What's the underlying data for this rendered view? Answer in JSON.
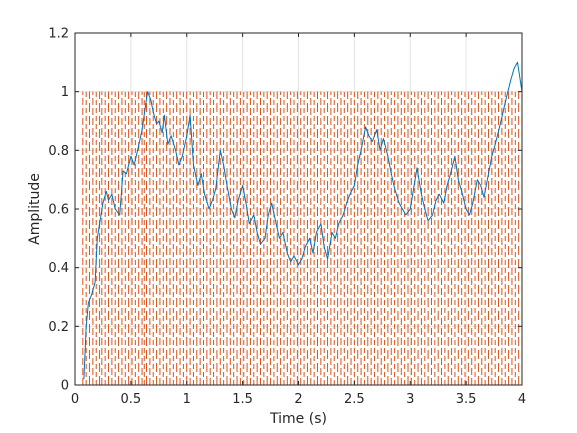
{
  "chart_data": {
    "type": "line",
    "title": "",
    "xlabel": "Time (s)",
    "ylabel": "Amplitude",
    "xlim": [
      0,
      4
    ],
    "ylim": [
      0,
      1.2
    ],
    "grid": true,
    "x_ticks": [
      0,
      0.5,
      1,
      1.5,
      2,
      2.5,
      3,
      3.5,
      4
    ],
    "x_tick_labels": [
      "0",
      "0.5",
      "1",
      "1.5",
      "2",
      "2.5",
      "3",
      "3.5",
      "4"
    ],
    "y_ticks": [
      0,
      0.2,
      0.4,
      0.6,
      0.8,
      1,
      1.2
    ],
    "y_tick_labels": [
      "0",
      "0.2",
      "0.4",
      "0.6",
      "0.8",
      "1",
      "1.2"
    ],
    "series": [
      {
        "kind": "line",
        "color": "#0072BD",
        "x": [
          0.08,
          0.1,
          0.12,
          0.15,
          0.18,
          0.2,
          0.22,
          0.25,
          0.28,
          0.3,
          0.33,
          0.36,
          0.4,
          0.43,
          0.46,
          0.5,
          0.53,
          0.56,
          0.6,
          0.63,
          0.65,
          0.68,
          0.7,
          0.73,
          0.75,
          0.78,
          0.8,
          0.83,
          0.86,
          0.9,
          0.93,
          0.96,
          1.0,
          1.03,
          1.06,
          1.1,
          1.13,
          1.16,
          1.2,
          1.23,
          1.26,
          1.3,
          1.33,
          1.36,
          1.4,
          1.43,
          1.46,
          1.5,
          1.53,
          1.56,
          1.6,
          1.63,
          1.66,
          1.7,
          1.73,
          1.76,
          1.8,
          1.83,
          1.86,
          1.9,
          1.93,
          1.96,
          2.0,
          2.03,
          2.06,
          2.1,
          2.13,
          2.16,
          2.2,
          2.23,
          2.26,
          2.3,
          2.33,
          2.36,
          2.4,
          2.43,
          2.46,
          2.5,
          2.53,
          2.56,
          2.6,
          2.63,
          2.66,
          2.7,
          2.73,
          2.76,
          2.8,
          2.83,
          2.86,
          2.9,
          2.93,
          2.96,
          3.0,
          3.03,
          3.06,
          3.1,
          3.13,
          3.16,
          3.2,
          3.23,
          3.26,
          3.3,
          3.33,
          3.36,
          3.4,
          3.43,
          3.46,
          3.5,
          3.53,
          3.56,
          3.6,
          3.63,
          3.66,
          3.7,
          3.73,
          3.76,
          3.8,
          3.83,
          3.86,
          3.9,
          3.93,
          3.96,
          4.0
        ],
        "y": [
          0.02,
          0.2,
          0.28,
          0.31,
          0.35,
          0.5,
          0.55,
          0.62,
          0.66,
          0.63,
          0.65,
          0.6,
          0.58,
          0.73,
          0.72,
          0.78,
          0.75,
          0.8,
          0.87,
          0.95,
          1.0,
          0.97,
          0.93,
          0.89,
          0.9,
          0.86,
          0.92,
          0.82,
          0.85,
          0.8,
          0.75,
          0.78,
          0.85,
          0.92,
          0.75,
          0.68,
          0.72,
          0.65,
          0.6,
          0.63,
          0.67,
          0.8,
          0.75,
          0.68,
          0.6,
          0.57,
          0.63,
          0.68,
          0.62,
          0.55,
          0.58,
          0.52,
          0.48,
          0.5,
          0.58,
          0.62,
          0.55,
          0.5,
          0.52,
          0.45,
          0.42,
          0.44,
          0.41,
          0.43,
          0.47,
          0.5,
          0.45,
          0.52,
          0.55,
          0.47,
          0.43,
          0.52,
          0.5,
          0.55,
          0.58,
          0.62,
          0.65,
          0.68,
          0.75,
          0.8,
          0.88,
          0.85,
          0.83,
          0.87,
          0.8,
          0.84,
          0.78,
          0.72,
          0.67,
          0.62,
          0.6,
          0.58,
          0.6,
          0.67,
          0.74,
          0.65,
          0.6,
          0.56,
          0.58,
          0.63,
          0.65,
          0.62,
          0.68,
          0.72,
          0.78,
          0.7,
          0.66,
          0.6,
          0.58,
          0.62,
          0.7,
          0.68,
          0.64,
          0.72,
          0.78,
          0.82,
          0.88,
          0.93,
          0.98,
          1.04,
          1.08,
          1.1,
          1.0
        ]
      },
      {
        "kind": "vertical-dashed-lines",
        "color": "#D95319",
        "y_range": [
          0,
          1
        ],
        "x": [
          0.07,
          0.1,
          0.13,
          0.16,
          0.19,
          0.22,
          0.24,
          0.27,
          0.3,
          0.33,
          0.36,
          0.39,
          0.42,
          0.45,
          0.48,
          0.51,
          0.54,
          0.57,
          0.6,
          0.62,
          0.64,
          0.67,
          0.7,
          0.73,
          0.76,
          0.79,
          0.82,
          0.85,
          0.88,
          0.91,
          0.94,
          0.97,
          1.0,
          1.03,
          1.06,
          1.09,
          1.12,
          1.15,
          1.18,
          1.21,
          1.24,
          1.27,
          1.3,
          1.33,
          1.36,
          1.39,
          1.42,
          1.45,
          1.48,
          1.51,
          1.54,
          1.57,
          1.6,
          1.63,
          1.66,
          1.69,
          1.72,
          1.75,
          1.78,
          1.81,
          1.84,
          1.87,
          1.9,
          1.93,
          1.96,
          1.99,
          2.02,
          2.05,
          2.08,
          2.11,
          2.14,
          2.17,
          2.2,
          2.23,
          2.26,
          2.29,
          2.32,
          2.35,
          2.38,
          2.41,
          2.44,
          2.47,
          2.5,
          2.53,
          2.56,
          2.59,
          2.62,
          2.65,
          2.68,
          2.71,
          2.74,
          2.77,
          2.8,
          2.83,
          2.86,
          2.89,
          2.92,
          2.95,
          2.98,
          3.01,
          3.04,
          3.07,
          3.1,
          3.13,
          3.16,
          3.19,
          3.22,
          3.25,
          3.28,
          3.31,
          3.34,
          3.37,
          3.4,
          3.43,
          3.46,
          3.49,
          3.52,
          3.55,
          3.58,
          3.61,
          3.64,
          3.67,
          3.7,
          3.73,
          3.76,
          3.79,
          3.82,
          3.85,
          3.88,
          3.91,
          3.94,
          3.97
        ]
      }
    ]
  }
}
